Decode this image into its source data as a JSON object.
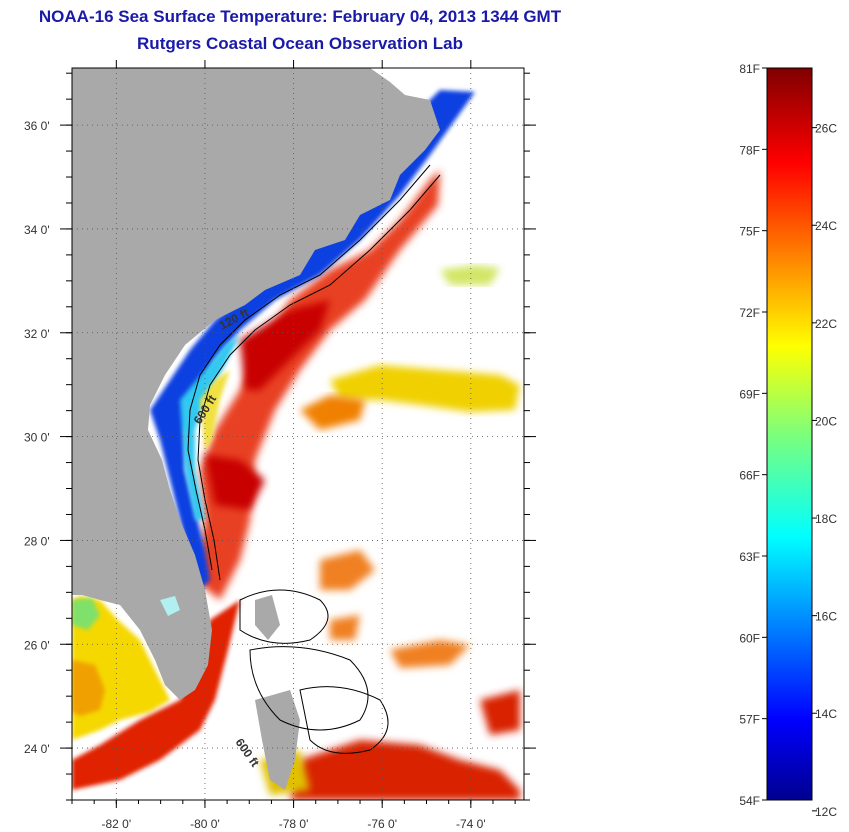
{
  "title": "NOAA-16 Sea Surface Temperature:  February 04, 2013 1344 GMT",
  "subtitle": "Rutgers Coastal Ocean Observation Lab",
  "map": {
    "lon_range": [
      -83,
      -72.8
    ],
    "lat_range": [
      23,
      37.1
    ],
    "lon_labels": [
      {
        "lon": -82,
        "label": "-82 0'"
      },
      {
        "lon": -80,
        "label": "-80 0'"
      },
      {
        "lon": -78,
        "label": "-78 0'"
      },
      {
        "lon": -76,
        "label": "-76 0'"
      },
      {
        "lon": -74,
        "label": "-74 0'"
      }
    ],
    "lat_labels": [
      {
        "lat": 36,
        "label": "36 0'"
      },
      {
        "lat": 34,
        "label": "34 0'"
      },
      {
        "lat": 32,
        "label": "32 0'"
      },
      {
        "lat": 30,
        "label": "30 0'"
      },
      {
        "lat": 28,
        "label": "28 0'"
      },
      {
        "lat": 26,
        "label": "26 0'"
      },
      {
        "lat": 24,
        "label": "24 0'"
      }
    ],
    "contour_labels": {
      "c120": "120 ft",
      "c600a": "600 ft",
      "c600b": "600 ft"
    }
  },
  "colorbar": {
    "range_f": [
      54,
      81
    ],
    "labels_f": [
      "81F",
      "78F",
      "75F",
      "72F",
      "69F",
      "66F",
      "63F",
      "60F",
      "57F",
      "54F"
    ],
    "labels_c": [
      "26C",
      "24C",
      "22C",
      "20C",
      "18C",
      "16C",
      "14C",
      "12C"
    ],
    "colors": {
      "land": "#a9a9a9",
      "border": "#000000",
      "title": "#1a1aa8"
    }
  }
}
